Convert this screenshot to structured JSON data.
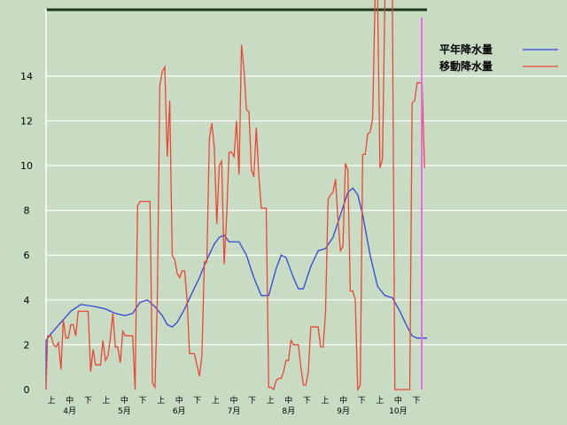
{
  "chart_data": {
    "type": "line",
    "title": "",
    "xlabel": "",
    "ylabel": "",
    "ylim": [
      0,
      17
    ],
    "yticks": [
      0,
      2,
      4,
      6,
      8,
      10,
      12,
      14
    ],
    "grid": true,
    "legend_placement": "top-right",
    "x_tick_labels": [
      {
        "slot": 0,
        "label": "上"
      },
      {
        "slot": 1,
        "label": "中"
      },
      {
        "slot": 2,
        "label": "下"
      },
      {
        "slot": 3,
        "label": "上"
      },
      {
        "slot": 4,
        "label": "中"
      },
      {
        "slot": 5,
        "label": "下"
      },
      {
        "slot": 6,
        "label": "上"
      },
      {
        "slot": 7,
        "label": "中"
      },
      {
        "slot": 8,
        "label": "下"
      },
      {
        "slot": 9,
        "label": "上"
      },
      {
        "slot": 10,
        "label": "中"
      },
      {
        "slot": 11,
        "label": "下"
      },
      {
        "slot": 12,
        "label": "上"
      },
      {
        "slot": 13,
        "label": "中"
      },
      {
        "slot": 14,
        "label": "下"
      },
      {
        "slot": 15,
        "label": "上"
      },
      {
        "slot": 16,
        "label": "中"
      },
      {
        "slot": 17,
        "label": "下"
      },
      {
        "slot": 18,
        "label": "上"
      },
      {
        "slot": 19,
        "label": "中"
      },
      {
        "slot": 20,
        "label": "下"
      }
    ],
    "month_labels": [
      {
        "slot": 1,
        "label": "4月"
      },
      {
        "slot": 4,
        "label": "5月"
      },
      {
        "slot": 7,
        "label": "6月"
      },
      {
        "slot": 10,
        "label": "7月"
      },
      {
        "slot": 13,
        "label": "8月"
      },
      {
        "slot": 16,
        "label": "9月"
      },
      {
        "slot": 19,
        "label": "10月"
      }
    ],
    "series": [
      {
        "name": "平年降水量",
        "color": "#3344dd",
        "points": [
          [
            0,
            0
          ],
          [
            0,
            2.2
          ],
          [
            1,
            2.5
          ],
          [
            3,
            3.0
          ],
          [
            5,
            3.5
          ],
          [
            7,
            3.8
          ],
          [
            10,
            3.7
          ],
          [
            12,
            3.6
          ],
          [
            14,
            3.4
          ],
          [
            16,
            3.3
          ],
          [
            17.5,
            3.4
          ],
          [
            19,
            3.9
          ],
          [
            20.5,
            4.0
          ],
          [
            22,
            3.7
          ],
          [
            23.5,
            3.3
          ],
          [
            24.5,
            2.9
          ],
          [
            25.5,
            2.8
          ],
          [
            26.5,
            3.0
          ],
          [
            28,
            3.6
          ],
          [
            29.5,
            4.3
          ],
          [
            31,
            5.0
          ],
          [
            32.5,
            5.8
          ],
          [
            34,
            6.5
          ],
          [
            35,
            6.8
          ],
          [
            36,
            6.9
          ],
          [
            37,
            6.6
          ],
          [
            38,
            6.6
          ],
          [
            39,
            6.6
          ],
          [
            40.5,
            6.0
          ],
          [
            42,
            5.0
          ],
          [
            43.5,
            4.2
          ],
          [
            45,
            4.2
          ],
          [
            46.5,
            5.4
          ],
          [
            47.5,
            6.0
          ],
          [
            48.5,
            5.9
          ],
          [
            50,
            5.0
          ],
          [
            51,
            4.5
          ],
          [
            52,
            4.5
          ],
          [
            53.5,
            5.5
          ],
          [
            55,
            6.2
          ],
          [
            56.5,
            6.3
          ],
          [
            58,
            6.8
          ],
          [
            59.5,
            7.8
          ],
          [
            61,
            8.8
          ],
          [
            62,
            9.0
          ],
          [
            63,
            8.7
          ],
          [
            64,
            7.8
          ],
          [
            65.5,
            6.0
          ],
          [
            67,
            4.6
          ],
          [
            68.5,
            4.2
          ],
          [
            70,
            4.1
          ],
          [
            71.5,
            3.5
          ],
          [
            73,
            2.8
          ],
          [
            74,
            2.4
          ],
          [
            75,
            2.3
          ],
          [
            76,
            2.3
          ],
          [
            77,
            2.3
          ]
        ]
      },
      {
        "name": "移動降水量",
        "color": "#ee4433",
        "points": [
          [
            0,
            0
          ],
          [
            0.3,
            2.4
          ],
          [
            1,
            2.4
          ],
          [
            1.5,
            2.0
          ],
          [
            2,
            1.9
          ],
          [
            2.5,
            2.1
          ],
          [
            3,
            0.9
          ],
          [
            3.5,
            3.1
          ],
          [
            4,
            2.3
          ],
          [
            4.5,
            2.3
          ],
          [
            5,
            2.9
          ],
          [
            5.5,
            2.9
          ],
          [
            6,
            2.4
          ],
          [
            6.5,
            3.5
          ],
          [
            7,
            3.5
          ],
          [
            7.5,
            3.5
          ],
          [
            8,
            3.5
          ],
          [
            8.5,
            3.5
          ],
          [
            9,
            0.8
          ],
          [
            9.5,
            1.8
          ],
          [
            10,
            1.1
          ],
          [
            10.5,
            1.1
          ],
          [
            11,
            1.1
          ],
          [
            11.5,
            2.2
          ],
          [
            12,
            1.3
          ],
          [
            12.5,
            1.5
          ],
          [
            13,
            2.3
          ],
          [
            13.5,
            3.4
          ],
          [
            14,
            1.9
          ],
          [
            14.5,
            1.9
          ],
          [
            15,
            1.2
          ],
          [
            15.5,
            2.6
          ],
          [
            16,
            2.4
          ],
          [
            17,
            2.4
          ],
          [
            17.5,
            2.4
          ],
          [
            18,
            0
          ],
          [
            18.5,
            8.2
          ],
          [
            19,
            8.4
          ],
          [
            20,
            8.4
          ],
          [
            21,
            8.4
          ],
          [
            21.5,
            0.3
          ],
          [
            22,
            0.1
          ],
          [
            22.5,
            4.0
          ],
          [
            23,
            13.6
          ],
          [
            23.5,
            14.2
          ],
          [
            24,
            14.4
          ],
          [
            24.5,
            10.4
          ],
          [
            25,
            12.9
          ],
          [
            25.5,
            6.0
          ],
          [
            26,
            5.8
          ],
          [
            26.5,
            5.2
          ],
          [
            27,
            5.0
          ],
          [
            27.5,
            5.3
          ],
          [
            28,
            5.3
          ],
          [
            28.5,
            4.0
          ],
          [
            29,
            1.6
          ],
          [
            30,
            1.6
          ],
          [
            30.5,
            1.1
          ],
          [
            31,
            0.6
          ],
          [
            31.5,
            1.5
          ],
          [
            32,
            5.7
          ],
          [
            32.5,
            5.7
          ],
          [
            33,
            11.2
          ],
          [
            33.5,
            11.9
          ],
          [
            34,
            10.8
          ],
          [
            34.5,
            7.4
          ],
          [
            35,
            10.0
          ],
          [
            35.5,
            10.2
          ],
          [
            36,
            5.6
          ],
          [
            36.5,
            7.7
          ],
          [
            37,
            10.6
          ],
          [
            37.5,
            10.6
          ],
          [
            38,
            10.4
          ],
          [
            38.5,
            12.0
          ],
          [
            39,
            9.6
          ],
          [
            39.5,
            15.4
          ],
          [
            40,
            14.3
          ],
          [
            40.5,
            12.5
          ],
          [
            41,
            12.4
          ],
          [
            41.5,
            9.8
          ],
          [
            42,
            9.5
          ],
          [
            42.5,
            11.7
          ],
          [
            43,
            9.6
          ],
          [
            43.5,
            8.1
          ],
          [
            44,
            8.1
          ],
          [
            44.5,
            8.1
          ],
          [
            45,
            0.1
          ],
          [
            45.5,
            0.1
          ],
          [
            46,
            0
          ],
          [
            46.5,
            0.4
          ],
          [
            47,
            0.5
          ],
          [
            47.5,
            0.5
          ],
          [
            48,
            0.8
          ],
          [
            48.5,
            1.3
          ],
          [
            49,
            1.3
          ],
          [
            49.5,
            2.2
          ],
          [
            50,
            2.0
          ],
          [
            51,
            2.0
          ],
          [
            51.5,
            1.0
          ],
          [
            52,
            0.2
          ],
          [
            52.5,
            0.2
          ],
          [
            53,
            0.8
          ],
          [
            53.5,
            2.8
          ],
          [
            54,
            2.8
          ],
          [
            55,
            2.8
          ],
          [
            55.5,
            1.9
          ],
          [
            56,
            1.9
          ],
          [
            56.5,
            3.5
          ],
          [
            57,
            8.5
          ],
          [
            57.5,
            8.7
          ],
          [
            58,
            8.8
          ],
          [
            58.5,
            9.4
          ],
          [
            59,
            7.6
          ],
          [
            59.5,
            6.2
          ],
          [
            60,
            6.4
          ],
          [
            60.5,
            10.1
          ],
          [
            61,
            9.8
          ],
          [
            61.5,
            4.4
          ],
          [
            62,
            4.4
          ],
          [
            62.5,
            4.0
          ],
          [
            63,
            0
          ],
          [
            63.5,
            0.2
          ],
          [
            64,
            10.5
          ],
          [
            64.5,
            10.5
          ],
          [
            65,
            11.4
          ],
          [
            65.5,
            11.5
          ],
          [
            66,
            12.1
          ],
          [
            66.5,
            17.5
          ],
          [
            67,
            17.5
          ],
          [
            67.5,
            9.9
          ],
          [
            68,
            10.3
          ],
          [
            68.5,
            17.5
          ],
          [
            69,
            17.5
          ],
          [
            70,
            17.5
          ],
          [
            70.5,
            0
          ],
          [
            71,
            0
          ],
          [
            72,
            0
          ],
          [
            73,
            0
          ],
          [
            73.5,
            0
          ],
          [
            74,
            12.8
          ],
          [
            74.5,
            12.9
          ],
          [
            75,
            13.7
          ],
          [
            75.5,
            13.7
          ],
          [
            76,
            13.7
          ],
          [
            76.5,
            9.9
          ]
        ]
      }
    ]
  }
}
